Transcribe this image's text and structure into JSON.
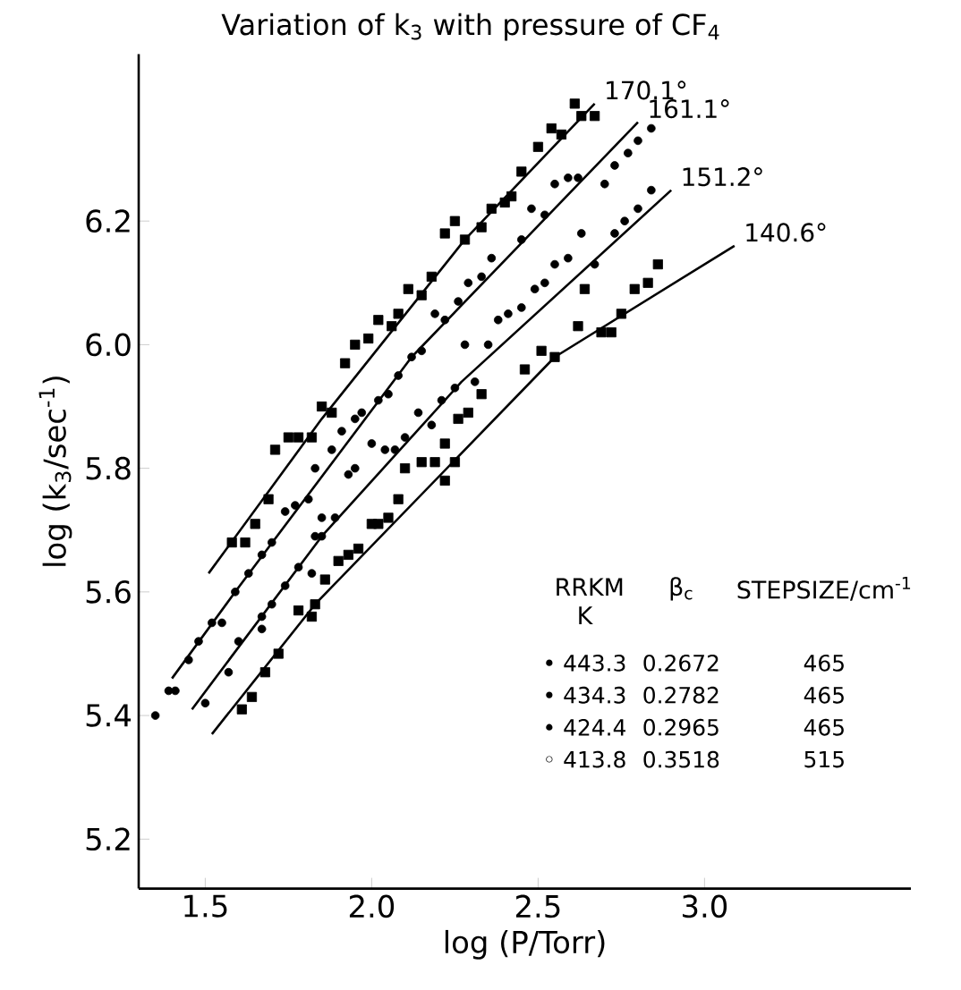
{
  "chart_data": {
    "type": "scatter",
    "title": "Variation of k$_{3}$ with pressure of CF$_{4}$",
    "xlabel": "log (P/Torr)",
    "ylabel": "log (k$_{3}$/sec$^{-1}$)",
    "xlim": [
      1.3,
      3.62
    ],
    "ylim": [
      5.12,
      6.47
    ],
    "xticks": [
      {
        "value": 1.5,
        "label": "1.5"
      },
      {
        "value": 2.0,
        "label": "2.0"
      },
      {
        "value": 2.5,
        "label": "2.5"
      },
      {
        "value": 3.0,
        "label": "3.0"
      }
    ],
    "yticks": [
      {
        "value": 5.2,
        "label": "5.2"
      },
      {
        "value": 5.4,
        "label": "5.4"
      },
      {
        "value": 5.6,
        "label": "5.6"
      },
      {
        "value": 5.8,
        "label": "5.8"
      },
      {
        "value": 6.0,
        "label": "6.0"
      },
      {
        "value": 6.2,
        "label": "6.2"
      }
    ],
    "grid": false,
    "legend": false,
    "series": [
      {
        "type": "scatter",
        "marker": "square",
        "color": "#000000",
        "x": [
          1.58,
          1.62,
          1.65,
          1.69,
          1.71,
          1.75,
          1.78,
          1.82,
          1.85,
          1.88,
          1.92,
          1.95,
          1.99,
          2.02,
          2.06,
          2.08,
          2.11,
          2.15,
          2.18,
          2.22,
          2.25,
          2.28,
          2.33,
          2.36,
          2.4,
          2.42,
          2.45,
          2.5,
          2.54,
          2.57,
          2.61,
          2.63,
          2.67
        ],
        "values": [
          5.68,
          5.68,
          5.71,
          5.75,
          5.83,
          5.85,
          5.85,
          5.85,
          5.9,
          5.89,
          5.97,
          6.0,
          6.01,
          6.04,
          6.03,
          6.05,
          6.09,
          6.08,
          6.11,
          6.18,
          6.2,
          6.17,
          6.19,
          6.22,
          6.23,
          6.24,
          6.28,
          6.32,
          6.35,
          6.34,
          6.39,
          6.37,
          6.37
        ]
      },
      {
        "type": "line",
        "name": "170.1°",
        "color": "#000000",
        "line_style": "solid",
        "x": [
          1.51,
          1.85,
          2.28,
          2.67
        ],
        "values": [
          5.63,
          5.88,
          6.17,
          6.39
        ]
      },
      {
        "type": "scatter",
        "marker": "circle",
        "color": "#000000",
        "x": [
          1.35,
          1.39,
          1.41,
          1.45,
          1.48,
          1.52,
          1.55,
          1.59,
          1.63,
          1.67,
          1.7,
          1.74,
          1.77,
          1.81,
          1.83,
          1.88,
          1.91,
          1.95,
          1.97,
          2.02,
          2.05,
          2.08,
          2.12,
          2.15,
          2.19,
          2.22,
          2.26,
          2.29,
          2.33,
          2.36,
          2.45,
          2.48,
          2.52,
          2.55,
          2.59,
          2.62,
          2.7,
          2.73,
          2.77,
          2.8,
          2.84
        ],
        "values": [
          5.4,
          5.44,
          5.44,
          5.49,
          5.52,
          5.55,
          5.55,
          5.6,
          5.63,
          5.66,
          5.68,
          5.73,
          5.74,
          5.75,
          5.8,
          5.83,
          5.86,
          5.88,
          5.89,
          5.91,
          5.92,
          5.95,
          5.98,
          5.99,
          6.05,
          6.04,
          6.07,
          6.1,
          6.11,
          6.14,
          6.17,
          6.22,
          6.21,
          6.26,
          6.27,
          6.27,
          6.26,
          6.29,
          6.31,
          6.33,
          6.35
        ]
      },
      {
        "type": "line",
        "name": "161.1°",
        "color": "#000000",
        "line_style": "solid",
        "x": [
          1.4,
          1.59,
          2.12,
          2.8
        ],
        "values": [
          5.46,
          5.6,
          5.98,
          6.36
        ]
      },
      {
        "type": "scatter",
        "marker": "circle",
        "color": "#000000",
        "x": [
          1.5,
          1.57,
          1.6,
          1.67,
          1.67,
          1.7,
          1.74,
          1.78,
          1.82,
          1.83,
          1.85,
          1.85,
          1.89,
          1.93,
          1.95,
          2.0,
          2.04,
          2.07,
          2.1,
          2.14,
          2.18,
          2.21,
          2.25,
          2.31,
          2.28,
          2.35,
          2.38,
          2.41,
          2.45,
          2.49,
          2.52,
          2.55,
          2.59,
          2.63,
          2.67,
          2.73,
          2.76,
          2.8,
          2.84
        ],
        "values": [
          5.42,
          5.47,
          5.52,
          5.54,
          5.56,
          5.58,
          5.61,
          5.64,
          5.63,
          5.69,
          5.69,
          5.72,
          5.72,
          5.79,
          5.8,
          5.84,
          5.83,
          5.83,
          5.85,
          5.89,
          5.87,
          5.91,
          5.93,
          5.94,
          6.0,
          6.0,
          6.04,
          6.05,
          6.06,
          6.09,
          6.1,
          6.13,
          6.14,
          6.18,
          6.13,
          6.18,
          6.2,
          6.22,
          6.25
        ]
      },
      {
        "type": "line",
        "name": "151.2°",
        "color": "#000000",
        "line_style": "solid",
        "x": [
          1.46,
          1.85,
          2.27,
          2.9
        ],
        "values": [
          5.41,
          5.69,
          5.94,
          6.25
        ]
      },
      {
        "type": "scatter",
        "marker": "square",
        "color": "#000000",
        "x": [
          1.61,
          1.64,
          1.68,
          1.72,
          1.78,
          1.82,
          1.83,
          1.86,
          1.9,
          1.93,
          1.96,
          2.0,
          2.02,
          2.05,
          2.08,
          2.1,
          2.15,
          2.19,
          2.22,
          2.22,
          2.25,
          2.26,
          2.29,
          2.33,
          2.46,
          2.51,
          2.55,
          2.62,
          2.64,
          2.69,
          2.72,
          2.75,
          2.79,
          2.83,
          2.86
        ],
        "values": [
          5.41,
          5.43,
          5.47,
          5.5,
          5.57,
          5.56,
          5.58,
          5.62,
          5.65,
          5.66,
          5.67,
          5.71,
          5.71,
          5.72,
          5.75,
          5.8,
          5.81,
          5.81,
          5.78,
          5.84,
          5.81,
          5.88,
          5.89,
          5.92,
          5.96,
          5.99,
          5.98,
          6.03,
          6.09,
          6.02,
          6.02,
          6.05,
          6.09,
          6.1,
          6.13
        ]
      },
      {
        "type": "line",
        "name": "140.6°",
        "color": "#000000",
        "line_style": "solid",
        "x": [
          1.52,
          1.83,
          2.55,
          3.09
        ],
        "values": [
          5.37,
          5.58,
          5.98,
          6.16
        ]
      }
    ],
    "annotations": [
      "RRKM K",
      "β$_{c}$",
      "STEPSIZE/cm$^{-1}$",
      "• 443.3",
      "0.2672",
      "465",
      "• 434.3",
      "0.2782",
      "465",
      "• 424.4",
      "0.2965",
      "465",
      "◦ 413.8",
      "0.3518",
      "515"
    ]
  }
}
